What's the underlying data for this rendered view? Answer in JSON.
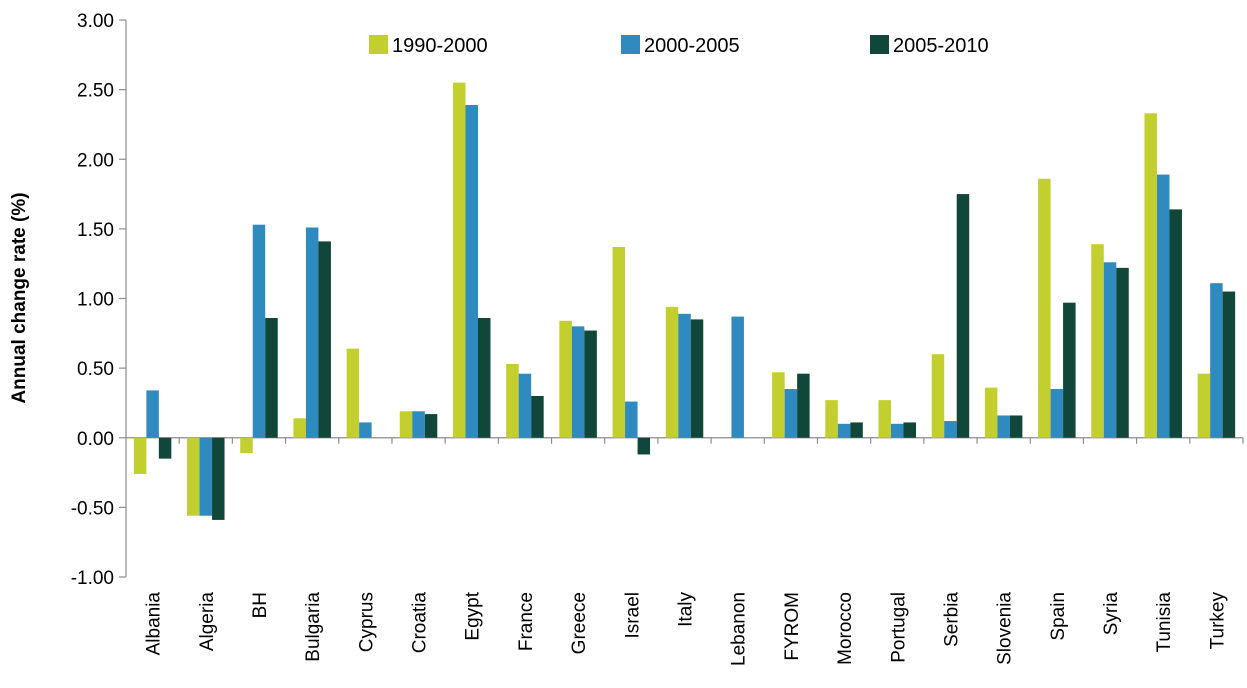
{
  "chart_data": {
    "type": "bar",
    "title": "",
    "xlabel": "",
    "ylabel": "Annual change rate (%)",
    "ylim": [
      -1.0,
      3.0
    ],
    "yticks": [
      -1.0,
      -0.5,
      0.0,
      0.5,
      1.0,
      1.5,
      2.0,
      2.5,
      3.0
    ],
    "ytick_labels": [
      "-1.00",
      "-0.50",
      "0.00",
      "0.50",
      "1.00",
      "1.50",
      "2.00",
      "2.50",
      "3.00"
    ],
    "grid": false,
    "legend_position": "top",
    "categories": [
      "Albania",
      "Algeria",
      "BH",
      "Bulgaria",
      "Cyprus",
      "Croatia",
      "Egypt",
      "France",
      "Greece",
      "Israel",
      "Italy",
      "Lebanon",
      "FYROM",
      "Morocco",
      "Portugal",
      "Serbia",
      "Slovenia",
      "Spain",
      "Syria",
      "Tunisia",
      "Turkey"
    ],
    "series": [
      {
        "name": "1990-2000",
        "color": "#c3cf2e",
        "values": [
          -0.26,
          -0.56,
          -0.11,
          0.14,
          0.64,
          0.19,
          2.55,
          0.53,
          0.84,
          1.37,
          0.94,
          0.0,
          0.47,
          0.27,
          0.27,
          0.6,
          0.36,
          1.86,
          1.39,
          2.33,
          0.46
        ]
      },
      {
        "name": "2000-2005",
        "color": "#2f8bbf",
        "values": [
          0.34,
          -0.56,
          1.53,
          1.51,
          0.11,
          0.19,
          2.39,
          0.46,
          0.8,
          0.26,
          0.89,
          0.87,
          0.35,
          0.1,
          0.1,
          0.12,
          0.16,
          0.35,
          1.26,
          1.89,
          1.11
        ]
      },
      {
        "name": "2005-2010",
        "color": "#11473a",
        "values": [
          -0.15,
          -0.59,
          0.86,
          1.41,
          0.0,
          0.17,
          0.86,
          0.3,
          0.77,
          -0.12,
          0.85,
          0.0,
          0.46,
          0.11,
          0.11,
          1.75,
          0.16,
          0.97,
          1.22,
          1.64,
          1.05
        ]
      }
    ]
  }
}
